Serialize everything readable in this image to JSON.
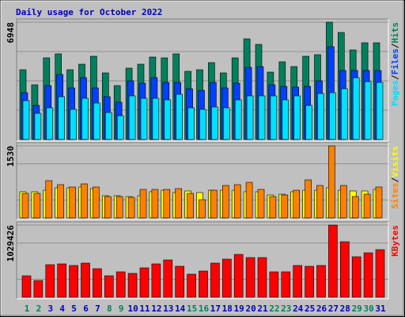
{
  "title": "Daily usage for October 2022",
  "legend_separator": "/",
  "chart_data": [
    {
      "type": "bar",
      "series": [
        {
          "name": "Hits",
          "color": "#00805c",
          "values": [
            4131,
            3240,
            4836,
            5071,
            4131,
            4460,
            4930,
            3944,
            3193,
            4226,
            4460,
            4883,
            4836,
            5071,
            4038,
            4131,
            4554,
            3944,
            4836,
            5963,
            5634,
            3991,
            4601,
            4319,
            4930,
            5024,
            6948,
            6338,
            5305,
            5728,
            5728
          ]
        },
        {
          "name": "Files",
          "color": "#0040ff",
          "values": [
            2770,
            2019,
            3193,
            3850,
            3052,
            3662,
            3052,
            2535,
            2207,
            3474,
            3333,
            3662,
            3380,
            3380,
            3005,
            2911,
            3380,
            3052,
            3333,
            4272,
            4319,
            3240,
            3146,
            3099,
            3146,
            3474,
            5493,
            4085,
            4085,
            4085,
            4085
          ]
        },
        {
          "name": "Pages",
          "color": "#00e0ff",
          "values": [
            2301,
            1549,
            1878,
            2535,
            1784,
            2441,
            2160,
            1596,
            1409,
            2582,
            2441,
            2441,
            2348,
            2676,
            1878,
            1784,
            1925,
            1878,
            2348,
            2582,
            2582,
            2582,
            2348,
            2582,
            2019,
            2723,
            2770,
            3005,
            3662,
            3427,
            3380
          ]
        }
      ],
      "ylim": [
        0,
        6948
      ],
      "yticks": [
        6948
      ]
    },
    {
      "type": "bar",
      "series": [
        {
          "name": "Visits",
          "color": "#ffff00",
          "values": [
            555,
            555,
            588,
            639,
            639,
            656,
            622,
            471,
            471,
            454,
            471,
            555,
            588,
            538,
            572,
            538,
            588,
            588,
            588,
            555,
            555,
            487,
            504,
            555,
            588,
            588,
            639,
            588,
            572,
            572,
            605
          ]
        },
        {
          "name": "Sites",
          "color": "#ff8000",
          "values": [
            521,
            521,
            790,
            706,
            656,
            723,
            656,
            454,
            454,
            437,
            605,
            605,
            605,
            622,
            521,
            387,
            588,
            689,
            706,
            756,
            605,
            454,
            487,
            588,
            807,
            689,
            1530,
            689,
            454,
            504,
            656
          ]
        }
      ],
      "ylim": [
        0,
        1530
      ],
      "yticks": [
        1530
      ]
    },
    {
      "type": "bar",
      "categories": [
        "1",
        "2",
        "3",
        "4",
        "5",
        "6",
        "7",
        "8",
        "9",
        "10",
        "11",
        "12",
        "13",
        "14",
        "15",
        "16",
        "17",
        "18",
        "19",
        "20",
        "21",
        "22",
        "23",
        "24",
        "25",
        "26",
        "27",
        "28",
        "29",
        "30",
        "31"
      ],
      "category_colors": [
        "#00805c",
        "#00805c",
        "#0000c0",
        "#0000c0",
        "#0000c0",
        "#0000c0",
        "#0000c0",
        "#00805c",
        "#00805c",
        "#0000c0",
        "#0000c0",
        "#0000c0",
        "#0000c0",
        "#0000c0",
        "#00805c",
        "#00805c",
        "#0000c0",
        "#0000c0",
        "#0000c0",
        "#0000c0",
        "#0000c0",
        "#00805c",
        "#00805c",
        "#0000c0",
        "#0000c0",
        "#0000c0",
        "#0000c0",
        "#0000c0",
        "#00805c",
        "#00805c",
        "#0000c0"
      ],
      "series": [
        {
          "name": "KBytes",
          "color": "#ff0000",
          "values": [
            305424,
            237552,
            463792,
            475104,
            452480,
            486416,
            407232,
            305424,
            361984,
            339360,
            418544,
            475104,
            531664,
            441168,
            328048,
            373296,
            486416,
            542976,
            610848,
            565600,
            565600,
            361984,
            361984,
            452480,
            441168,
            452480,
            1029426,
            791840,
            576912,
            633472,
            678720
          ]
        }
      ],
      "ylim": [
        0,
        1029426
      ],
      "yticks": [
        1029426
      ]
    }
  ]
}
